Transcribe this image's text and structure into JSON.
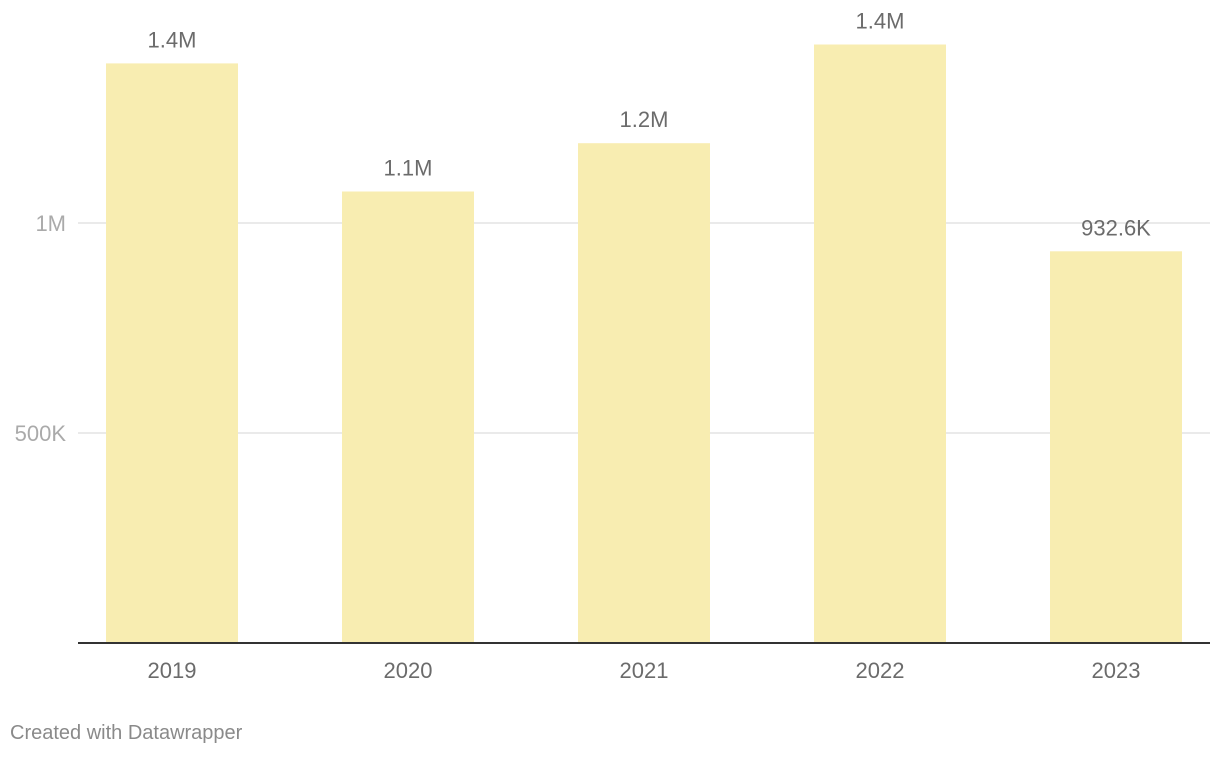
{
  "chart_data": {
    "type": "bar",
    "categories": [
      "2019",
      "2020",
      "2021",
      "2022",
      "2023"
    ],
    "values": [
      1380000,
      1075000,
      1190000,
      1425000,
      932600
    ],
    "data_labels": [
      "1.4M",
      "1.1M",
      "1.2M",
      "1.4M",
      "932.6K"
    ],
    "y_ticks": [
      {
        "value": 500000,
        "label": "500K"
      },
      {
        "value": 1000000,
        "label": "1M"
      }
    ],
    "ylim": [
      0,
      1500000
    ],
    "grid": true,
    "title": "",
    "xlabel": "",
    "ylabel": ""
  },
  "colors": {
    "bar": "#f8edb1",
    "gridline": "#e3e3e3",
    "baseline": "#333333",
    "tick_text": "#aaaaaa",
    "category_text": "#6b6b6b",
    "label_text": "#6b6b6b"
  },
  "footer": {
    "credit": "Created with Datawrapper"
  }
}
